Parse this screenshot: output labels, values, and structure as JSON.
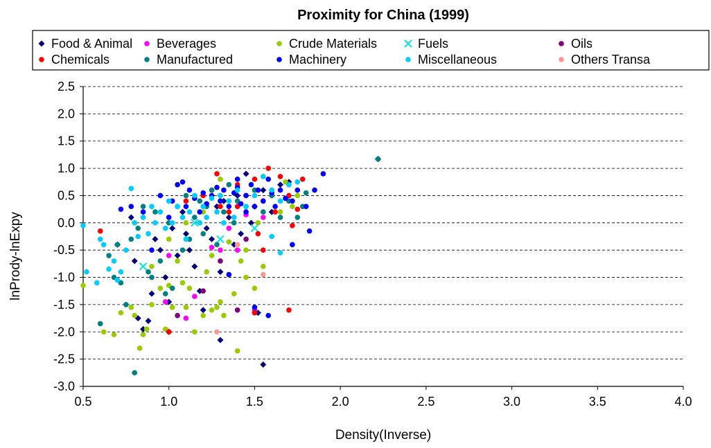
{
  "chart_data": {
    "type": "scatter",
    "title": "Proximity for China (1999)",
    "xlabel": "Density(Inverse)",
    "ylabel": "lnPrody-lnExpy",
    "xlim": [
      0.5,
      4.0
    ],
    "ylim": [
      -3.0,
      2.5
    ],
    "xticks": [
      "0.5",
      "1.0",
      "1.5",
      "2.0",
      "2.5",
      "3.0",
      "3.5",
      "4.0"
    ],
    "yticks": [
      "2.5",
      "2.0",
      "1.5",
      "1.0",
      "0.5",
      "0.0",
      "-0.5",
      "-1.0",
      "-1.5",
      "-2.0",
      "-2.5",
      "-3.0"
    ],
    "grid": "horizontal-dashed",
    "legend_position": "top",
    "series": [
      {
        "name": "Food &  Animal",
        "color": "#000080",
        "marker": "diamond",
        "points": [
          [
            0.8,
            -0.7
          ],
          [
            0.85,
            -1.95
          ],
          [
            0.82,
            -1.75
          ],
          [
            0.88,
            -1.8
          ],
          [
            0.9,
            -1.3
          ],
          [
            0.95,
            -0.5
          ],
          [
            1.0,
            -2.0
          ],
          [
            1.0,
            -1.45
          ],
          [
            0.98,
            -1.0
          ],
          [
            1.05,
            -0.6
          ],
          [
            1.1,
            -0.2
          ],
          [
            1.12,
            -0.5
          ],
          [
            1.15,
            -0.8
          ],
          [
            1.18,
            -1.25
          ],
          [
            1.2,
            -1.6
          ],
          [
            1.25,
            -0.3
          ],
          [
            1.28,
            0.3
          ],
          [
            1.3,
            -2.15
          ],
          [
            1.3,
            -0.9
          ],
          [
            1.35,
            0.1
          ],
          [
            1.38,
            -0.4
          ],
          [
            1.4,
            0.5
          ],
          [
            1.45,
            0.9
          ],
          [
            1.5,
            0.3
          ],
          [
            1.52,
            -1.65
          ],
          [
            1.55,
            -2.6
          ],
          [
            1.55,
            0.6
          ],
          [
            1.6,
            0.2
          ],
          [
            1.65,
            0.7
          ],
          [
            1.7,
            0.75
          ],
          [
            0.78,
            0.1
          ],
          [
            0.92,
            -0.3
          ],
          [
            1.08,
            0.2
          ],
          [
            1.22,
            -0.1
          ],
          [
            2.22,
            1.17
          ],
          [
            0.7,
            -0.4
          ],
          [
            1.02,
            -0.1
          ],
          [
            1.32,
            0.4
          ],
          [
            1.42,
            -0.2
          ],
          [
            1.48,
            0.0
          ]
        ]
      },
      {
        "name": "Beverages",
        "color": "#ff00ff",
        "marker": "circle",
        "points": [
          [
            0.98,
            -1.45
          ],
          [
            1.0,
            -0.6
          ],
          [
            1.1,
            -1.75
          ],
          [
            1.15,
            -1.35
          ],
          [
            1.25,
            -0.45
          ],
          [
            1.3,
            -0.5
          ],
          [
            1.35,
            -0.1
          ],
          [
            1.4,
            -0.5
          ],
          [
            1.45,
            0.15
          ],
          [
            1.5,
            -1.6
          ],
          [
            1.55,
            0.1
          ]
        ]
      },
      {
        "name": "Crude Materials",
        "color": "#99cc00",
        "marker": "circle",
        "points": [
          [
            0.5,
            -1.15
          ],
          [
            0.62,
            -2.0
          ],
          [
            0.68,
            -2.05
          ],
          [
            0.72,
            -1.65
          ],
          [
            0.78,
            -1.55
          ],
          [
            0.8,
            -1.7
          ],
          [
            0.83,
            -2.3
          ],
          [
            0.85,
            -2.05
          ],
          [
            0.87,
            -1.95
          ],
          [
            0.9,
            -1.5
          ],
          [
            0.95,
            -1.2
          ],
          [
            0.98,
            -1.95
          ],
          [
            1.0,
            -1.15
          ],
          [
            1.02,
            -1.55
          ],
          [
            1.05,
            -0.7
          ],
          [
            1.08,
            -1.1
          ],
          [
            1.1,
            -1.55
          ],
          [
            1.12,
            -1.2
          ],
          [
            1.15,
            -2.0
          ],
          [
            1.2,
            -1.7
          ],
          [
            1.22,
            -0.9
          ],
          [
            1.25,
            -1.6
          ],
          [
            1.28,
            -1.55
          ],
          [
            1.3,
            -1.45
          ],
          [
            1.32,
            -1.7
          ],
          [
            1.35,
            -0.95
          ],
          [
            1.38,
            -1.3
          ],
          [
            1.4,
            -2.35
          ],
          [
            1.42,
            -0.7
          ],
          [
            1.45,
            -0.5
          ],
          [
            1.5,
            -1.2
          ],
          [
            1.52,
            0.0
          ],
          [
            1.55,
            -0.8
          ],
          [
            1.6,
            0.5
          ],
          [
            1.65,
            0.2
          ],
          [
            1.68,
            0.75
          ],
          [
            1.72,
            0.3
          ],
          [
            1.75,
            0.5
          ],
          [
            1.3,
            0.8
          ],
          [
            1.2,
            0.2
          ],
          [
            1.1,
            0.0
          ],
          [
            1.0,
            -0.3
          ],
          [
            0.9,
            -0.8
          ],
          [
            1.35,
            -0.35
          ],
          [
            1.45,
            -1.0
          ],
          [
            1.25,
            -0.6
          ]
        ]
      },
      {
        "name": "Fuels",
        "color": "#00e5e5",
        "marker": "x",
        "points": [
          [
            0.85,
            -0.8
          ],
          [
            1.15,
            0.0
          ],
          [
            1.3,
            -0.3
          ],
          [
            1.5,
            -0.1
          ]
        ]
      },
      {
        "name": "Oils",
        "color": "#800080",
        "marker": "circle",
        "points": [
          [
            1.05,
            -1.7
          ],
          [
            1.2,
            -1.25
          ],
          [
            1.3,
            -0.7
          ],
          [
            1.4,
            -1.6
          ],
          [
            1.45,
            -0.3
          ],
          [
            1.5,
            -1.65
          ]
        ]
      },
      {
        "name": "Chemicals",
        "color": "#ff0000",
        "marker": "circle",
        "points": [
          [
            0.6,
            -0.15
          ],
          [
            1.0,
            -2.0
          ],
          [
            1.1,
            0.4
          ],
          [
            1.2,
            0.5
          ],
          [
            1.25,
            0.6
          ],
          [
            1.28,
            0.9
          ],
          [
            1.3,
            0.3
          ],
          [
            1.35,
            0.2
          ],
          [
            1.4,
            0.7
          ],
          [
            1.45,
            0.5
          ],
          [
            1.5,
            0.8
          ],
          [
            1.52,
            -0.2
          ],
          [
            1.55,
            -0.5
          ],
          [
            1.55,
            0.4
          ],
          [
            1.58,
            1.0
          ],
          [
            1.6,
            0.6
          ],
          [
            1.62,
            0.2
          ],
          [
            1.65,
            0.85
          ],
          [
            1.7,
            -1.6
          ],
          [
            1.7,
            0.5
          ],
          [
            1.72,
            -0.05
          ],
          [
            1.75,
            0.25
          ],
          [
            1.78,
            0.8
          ],
          [
            1.5,
            -1.65
          ],
          [
            1.4,
            0.3
          ]
        ]
      },
      {
        "name": "Manufactured",
        "color": "#008080",
        "marker": "circle",
        "points": [
          [
            0.6,
            -1.85
          ],
          [
            0.65,
            -0.6
          ],
          [
            0.68,
            -1.0
          ],
          [
            0.7,
            -0.4
          ],
          [
            0.72,
            -1.1
          ],
          [
            0.75,
            -1.5
          ],
          [
            0.78,
            -0.3
          ],
          [
            0.8,
            -2.75
          ],
          [
            0.82,
            -0.1
          ],
          [
            0.85,
            0.3
          ],
          [
            0.88,
            -0.9
          ],
          [
            0.9,
            -1.0
          ],
          [
            0.92,
            0.2
          ],
          [
            0.95,
            -0.7
          ],
          [
            0.98,
            -1.3
          ],
          [
            1.0,
            0.0
          ],
          [
            1.02,
            -1.2
          ],
          [
            1.05,
            0.3
          ],
          [
            1.08,
            -0.5
          ],
          [
            1.1,
            0.5
          ],
          [
            1.12,
            -0.3
          ],
          [
            1.15,
            0.1
          ],
          [
            1.18,
            0.4
          ],
          [
            1.2,
            -0.2
          ],
          [
            1.22,
            0.3
          ],
          [
            1.25,
            0.6
          ],
          [
            1.28,
            -0.4
          ],
          [
            1.3,
            0.5
          ],
          [
            1.32,
            0.2
          ],
          [
            1.35,
            0.7
          ],
          [
            1.38,
            0.0
          ],
          [
            1.4,
            0.4
          ],
          [
            1.45,
            0.3
          ],
          [
            1.5,
            0.6
          ],
          [
            1.55,
            0.2
          ],
          [
            1.6,
            0.5
          ],
          [
            1.65,
            0.1
          ],
          [
            1.7,
            0.4
          ],
          [
            1.75,
            0.1
          ],
          [
            1.78,
            0.3
          ],
          [
            1.8,
            0.55
          ],
          [
            2.22,
            1.17
          ]
        ]
      },
      {
        "name": "Machinery",
        "color": "#0000ff",
        "marker": "circle",
        "points": [
          [
            0.72,
            0.25
          ],
          [
            0.78,
            0.3
          ],
          [
            0.85,
            0.2
          ],
          [
            0.9,
            -0.5
          ],
          [
            0.95,
            0.5
          ],
          [
            1.0,
            0.1
          ],
          [
            1.02,
            0.4
          ],
          [
            1.05,
            0.7
          ],
          [
            1.08,
            0.75
          ],
          [
            1.1,
            0.3
          ],
          [
            1.12,
            0.6
          ],
          [
            1.15,
            0.45
          ],
          [
            1.18,
            0.2
          ],
          [
            1.2,
            0.55
          ],
          [
            1.22,
            0.35
          ],
          [
            1.25,
            0.5
          ],
          [
            1.28,
            0.65
          ],
          [
            1.3,
            0.4
          ],
          [
            1.32,
            0.6
          ],
          [
            1.35,
            0.3
          ],
          [
            1.38,
            0.55
          ],
          [
            1.4,
            0.65
          ],
          [
            1.42,
            0.35
          ],
          [
            1.45,
            0.5
          ],
          [
            1.48,
            0.7
          ],
          [
            1.5,
            0.3
          ],
          [
            1.52,
            0.6
          ],
          [
            1.55,
            0.4
          ],
          [
            1.58,
            0.8
          ],
          [
            1.6,
            0.55
          ],
          [
            1.62,
            0.3
          ],
          [
            1.65,
            0.6
          ],
          [
            1.68,
            0.45
          ],
          [
            1.7,
            0.7
          ],
          [
            1.72,
            0.4
          ],
          [
            1.75,
            0.6
          ],
          [
            1.8,
            0.3
          ],
          [
            1.82,
            -0.15
          ],
          [
            1.85,
            0.6
          ],
          [
            1.9,
            0.9
          ],
          [
            1.72,
            -0.4
          ],
          [
            1.58,
            -1.7
          ],
          [
            1.5,
            -1.55
          ],
          [
            1.35,
            -0.95
          ],
          [
            1.4,
            0.8
          ],
          [
            1.45,
            0.2
          ]
        ]
      },
      {
        "name": "Miscellaneous",
        "color": "#00ccff",
        "marker": "circle",
        "points": [
          [
            0.5,
            -0.05
          ],
          [
            0.52,
            -0.9
          ],
          [
            0.58,
            -1.1
          ],
          [
            0.6,
            -0.3
          ],
          [
            0.62,
            -0.4
          ],
          [
            0.65,
            -0.85
          ],
          [
            0.68,
            -0.7
          ],
          [
            0.7,
            -1.05
          ],
          [
            0.72,
            -0.9
          ],
          [
            0.75,
            -0.5
          ],
          [
            0.78,
            0.63
          ],
          [
            0.8,
            0.0
          ],
          [
            0.82,
            -0.25
          ],
          [
            0.85,
            0.1
          ],
          [
            0.88,
            -0.2
          ],
          [
            0.9,
            0.3
          ],
          [
            0.92,
            0.0
          ],
          [
            0.95,
            0.2
          ],
          [
            0.98,
            -0.1
          ],
          [
            1.0,
            0.4
          ],
          [
            1.02,
            0.0
          ],
          [
            1.05,
            0.3
          ],
          [
            1.08,
            0.1
          ],
          [
            1.1,
            -0.3
          ],
          [
            1.12,
            0.2
          ],
          [
            1.15,
            0.5
          ],
          [
            1.18,
            0.0
          ],
          [
            1.2,
            0.3
          ],
          [
            1.22,
            0.1
          ],
          [
            1.25,
            0.45
          ],
          [
            1.28,
            0.2
          ],
          [
            1.3,
            0.5
          ],
          [
            1.32,
            0.0
          ],
          [
            1.35,
            0.4
          ],
          [
            1.38,
            0.1
          ],
          [
            1.4,
            0.6
          ],
          [
            1.45,
            0.3
          ],
          [
            1.5,
            0.5
          ],
          [
            1.55,
            0.85
          ],
          [
            1.6,
            0.6
          ],
          [
            1.65,
            0.4
          ],
          [
            1.7,
            0.7
          ],
          [
            1.75,
            0.75
          ],
          [
            1.6,
            -0.25
          ],
          [
            1.65,
            -0.55
          ]
        ]
      },
      {
        "name": "Others Transa",
        "color": "#ff9999",
        "marker": "circle",
        "points": [
          [
            1.28,
            -2.0
          ],
          [
            1.4,
            -0.4
          ],
          [
            1.55,
            -0.95
          ]
        ]
      }
    ]
  }
}
